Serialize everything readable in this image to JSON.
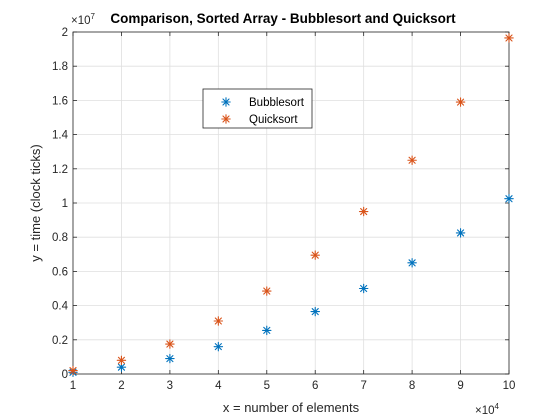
{
  "chart_data": {
    "type": "scatter",
    "title": "Comparison, Sorted Array - Bubblesort and Quicksort",
    "xlabel": "x = number of elements",
    "ylabel": "y = time (clock ticks)",
    "x_exponent_label": {
      "base": "×10",
      "power": "4"
    },
    "y_exponent_label": {
      "base": "×10",
      "power": "7"
    },
    "xlim": [
      1,
      10
    ],
    "ylim": [
      0,
      2
    ],
    "x_ticks": [
      "1",
      "2",
      "3",
      "4",
      "5",
      "6",
      "7",
      "8",
      "9",
      "10"
    ],
    "y_ticks": [
      "0",
      "0.2",
      "0.4",
      "0.6",
      "0.8",
      "1",
      "1.2",
      "1.4",
      "1.6",
      "1.8",
      "2"
    ],
    "grid": true,
    "marker": "asterisk",
    "legend_position": "upper-center",
    "series": [
      {
        "name": "Bubblesort",
        "color": "#0072BD",
        "x": [
          1,
          2,
          3,
          4,
          5,
          6,
          7,
          8,
          9,
          10
        ],
        "y": [
          0.01,
          0.04,
          0.09,
          0.16,
          0.255,
          0.365,
          0.5,
          0.65,
          0.825,
          1.025
        ]
      },
      {
        "name": "Quicksort",
        "color": "#D95319",
        "x": [
          1,
          2,
          3,
          4,
          5,
          6,
          7,
          8,
          9,
          10
        ],
        "y": [
          0.02,
          0.08,
          0.175,
          0.31,
          0.485,
          0.695,
          0.95,
          1.25,
          1.59,
          1.965
        ]
      }
    ]
  }
}
